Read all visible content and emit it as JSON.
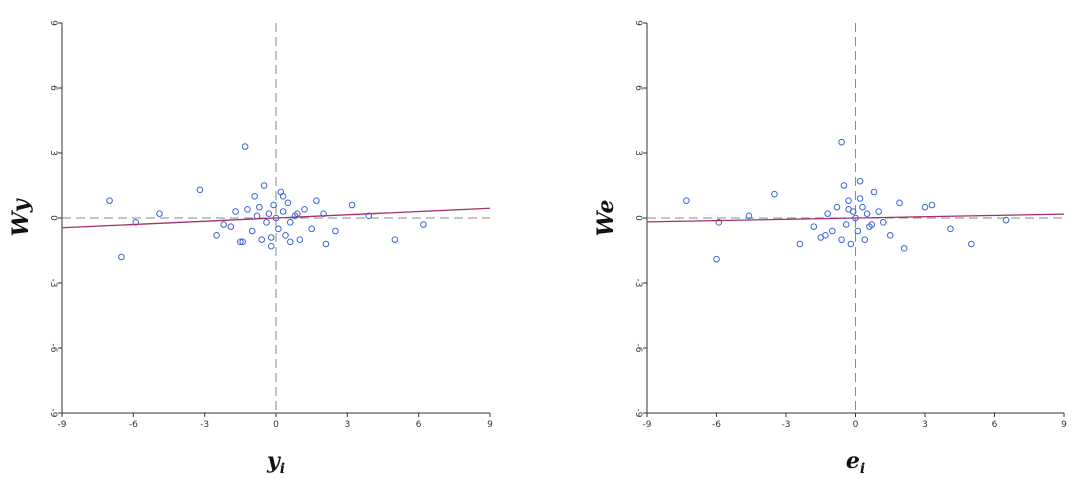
{
  "chart_data": [
    {
      "type": "scatter",
      "ylabel": "Wy",
      "xlabel": "y",
      "xlabel_sub": "i",
      "x": [
        -7.0,
        -6.5,
        -5.9,
        -4.9,
        -3.2,
        -2.5,
        -2.2,
        -1.9,
        -1.7,
        -1.5,
        -1.3,
        -1.2,
        -1.0,
        -0.9,
        -0.7,
        -0.6,
        -0.5,
        -0.4,
        -0.3,
        -0.2,
        -0.1,
        0.0,
        0.1,
        0.2,
        0.3,
        0.4,
        0.5,
        0.6,
        0.8,
        1.0,
        1.2,
        1.5,
        1.7,
        2.0,
        2.1,
        2.5,
        3.2,
        3.9,
        5.0,
        6.2,
        -0.2,
        0.3,
        -0.8,
        0.6,
        -1.4,
        0.9
      ],
      "values": [
        0.8,
        -1.8,
        -0.2,
        0.2,
        1.3,
        -0.8,
        -0.3,
        -0.4,
        0.3,
        -1.1,
        3.3,
        0.4,
        -0.6,
        1.0,
        0.5,
        -1.0,
        1.5,
        -0.2,
        0.2,
        -1.3,
        0.6,
        0.0,
        -0.5,
        1.2,
        0.3,
        -0.8,
        0.7,
        -0.2,
        0.1,
        -1.0,
        0.4,
        -0.5,
        0.8,
        0.2,
        -1.2,
        -0.6,
        0.6,
        0.1,
        -1.0,
        -0.3,
        -0.9,
        1.0,
        0.1,
        -1.1,
        -1.1,
        0.2
      ],
      "color": "#3a66d6",
      "fit": {
        "slope": 0.05,
        "intercept": 0.0,
        "color": "#a0306e"
      },
      "reference": {
        "x": 0,
        "y": 0,
        "color": "#8a8a8a"
      },
      "xlim": [
        -9,
        9
      ],
      "ylim": [
        -9,
        9
      ],
      "xticks": [
        -9,
        -6,
        -3,
        0,
        3,
        6,
        9
      ],
      "yticks": [
        -9,
        -6,
        -3,
        0,
        3,
        6,
        9
      ]
    },
    {
      "type": "scatter",
      "ylabel": "We",
      "xlabel": "e",
      "xlabel_sub": "i",
      "x": [
        -7.3,
        -6.0,
        -5.9,
        -4.6,
        -3.5,
        -2.4,
        -1.8,
        -1.5,
        -1.2,
        -1.0,
        -0.8,
        -0.6,
        -0.5,
        -0.4,
        -0.3,
        -0.2,
        -0.1,
        0.0,
        0.1,
        0.2,
        0.3,
        0.4,
        0.5,
        0.6,
        0.8,
        1.0,
        1.2,
        1.5,
        1.9,
        2.1,
        3.0,
        3.3,
        4.1,
        5.0,
        6.5,
        -0.6,
        0.2,
        -0.3,
        0.7,
        -1.3
      ],
      "values": [
        0.8,
        -1.9,
        -0.2,
        0.1,
        1.1,
        -1.2,
        -0.4,
        -0.9,
        0.2,
        -0.6,
        0.5,
        3.5,
        1.5,
        -0.3,
        0.8,
        -1.2,
        0.3,
        0.0,
        -0.6,
        1.7,
        0.5,
        -1.0,
        0.2,
        -0.4,
        1.2,
        0.3,
        -0.2,
        -0.8,
        0.7,
        -1.4,
        0.5,
        0.6,
        -0.5,
        -1.2,
        -0.1,
        -1.0,
        0.9,
        0.4,
        -0.3,
        -0.8
      ],
      "color": "#3a66d6",
      "fit": {
        "slope": 0.02,
        "intercept": 0.0,
        "color": "#a0306e"
      },
      "reference": {
        "x": 0,
        "y": 0,
        "color": "#8a8a8a"
      },
      "xlim": [
        -9,
        9
      ],
      "ylim": [
        -9,
        9
      ],
      "xticks": [
        -9,
        -6,
        -3,
        0,
        3,
        6,
        9
      ],
      "yticks": [
        -9,
        -6,
        -3,
        0,
        3,
        6,
        9
      ]
    }
  ]
}
